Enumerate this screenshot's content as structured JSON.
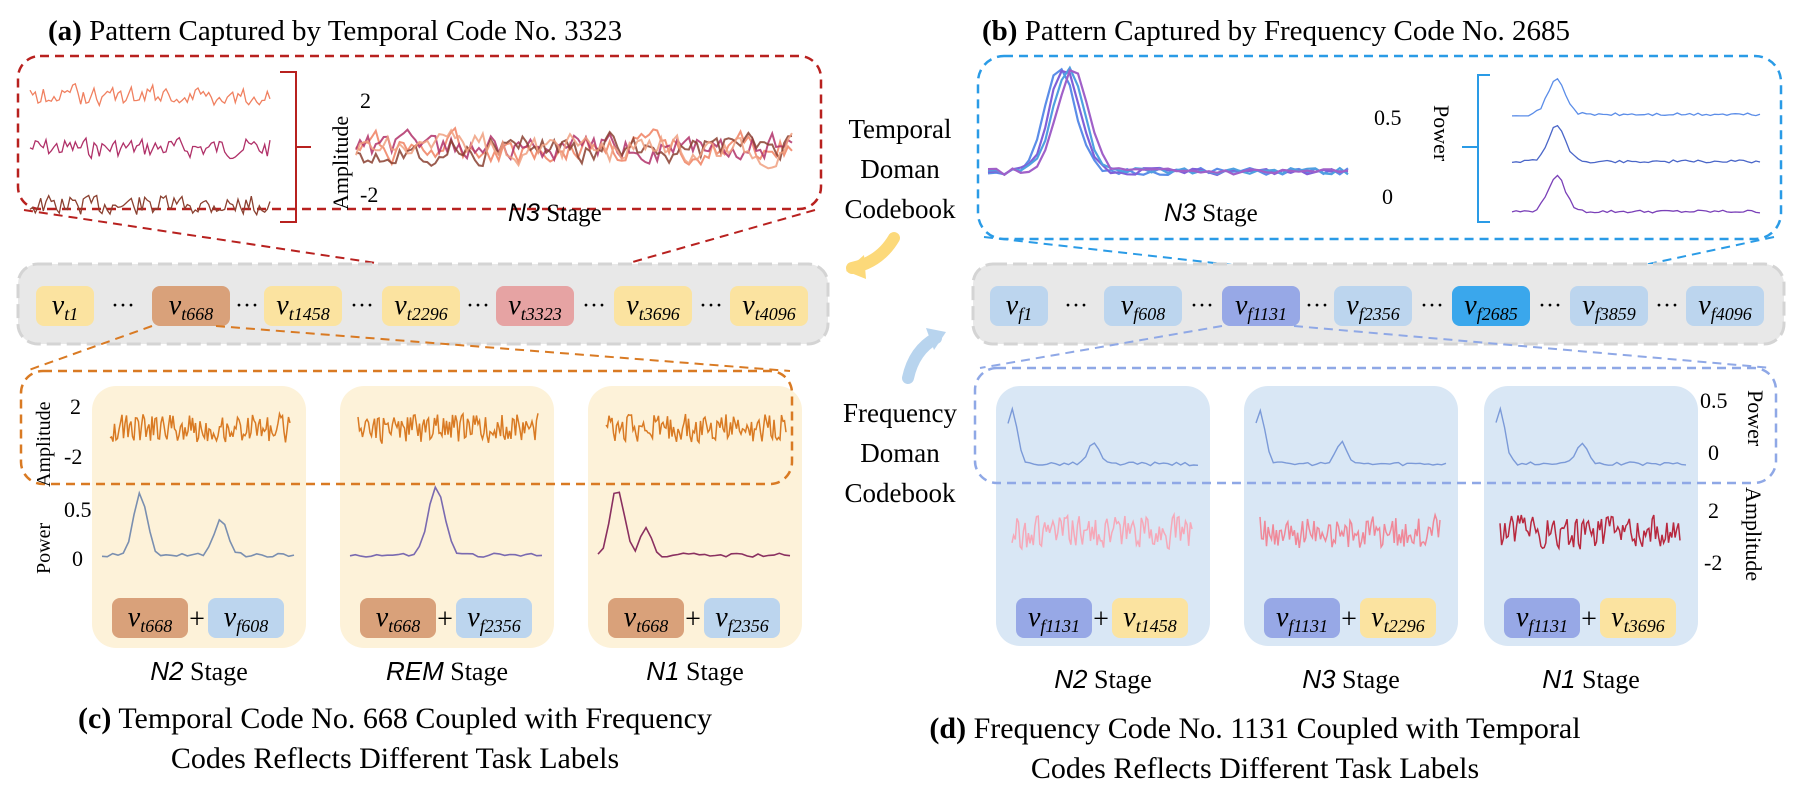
{
  "panels": {
    "a": {
      "letter": "(a)",
      "title": "Pattern Captured by Temporal Code No. 3323",
      "stage_name": "N3",
      "ylabel": "Amplitude",
      "ytick_top": "2",
      "ytick_bottom": "-2"
    },
    "b": {
      "letter": "(b)",
      "title": "Pattern Captured by Frequency Code No. 2685",
      "stage_name": "N3",
      "ylabel": "Power",
      "ytick_top": "0.5",
      "ytick_bottom": "0"
    },
    "c": {
      "letter": "(c)",
      "caption_line1": "Temporal Code No. 668 Coupled with Frequency",
      "caption_line2": "Codes Reflects Different Task Labels",
      "amp_label": "Amplitude",
      "amp_top": "2",
      "amp_bottom": "-2",
      "pow_label": "Power",
      "pow_top": "0.5",
      "pow_bottom": "0",
      "cards": [
        {
          "stage": "N2",
          "temporal": {
            "base": "v",
            "sub": "t668"
          },
          "frequency": {
            "base": "v",
            "sub": "f608"
          }
        },
        {
          "stage": "REM",
          "temporal": {
            "base": "v",
            "sub": "t668"
          },
          "frequency": {
            "base": "v",
            "sub": "f2356"
          }
        },
        {
          "stage": "N1",
          "temporal": {
            "base": "v",
            "sub": "t668"
          },
          "frequency": {
            "base": "v",
            "sub": "f2356"
          }
        }
      ]
    },
    "d": {
      "letter": "(d)",
      "caption_line1": "Frequency Code No. 1131 Coupled with Temporal",
      "caption_line2": "Codes Reflects Different Task Labels",
      "pow_label": "Power",
      "pow_top": "0.5",
      "pow_bottom": "0",
      "amp_label": "Amplitude",
      "amp_top": "2",
      "amp_bottom": "-2",
      "cards": [
        {
          "stage": "N2",
          "frequency": {
            "base": "v",
            "sub": "f1131"
          },
          "temporal": {
            "base": "v",
            "sub": "t1458"
          }
        },
        {
          "stage": "N3",
          "frequency": {
            "base": "v",
            "sub": "f1131"
          },
          "temporal": {
            "base": "v",
            "sub": "t2296"
          }
        },
        {
          "stage": "N1",
          "frequency": {
            "base": "v",
            "sub": "f1131"
          },
          "temporal": {
            "base": "v",
            "sub": "t3696"
          }
        }
      ]
    }
  },
  "stage_suffix": "Stage",
  "plus": "+",
  "dots": "···",
  "temporal_codebook": {
    "label_lines": [
      "Temporal",
      "Doman",
      "Codebook"
    ],
    "codes": [
      {
        "base": "v",
        "sub": "t1",
        "color": "#fbe3a0"
      },
      {
        "base": "v",
        "sub": "t668",
        "color": "#d9a17a"
      },
      {
        "base": "v",
        "sub": "t1458",
        "color": "#fbe3a0"
      },
      {
        "base": "v",
        "sub": "t2296",
        "color": "#fbe3a0"
      },
      {
        "base": "v",
        "sub": "t3323",
        "color": "#e6a3a3"
      },
      {
        "base": "v",
        "sub": "t3696",
        "color": "#fbe3a0"
      },
      {
        "base": "v",
        "sub": "t4096",
        "color": "#fbe3a0"
      }
    ]
  },
  "frequency_codebook": {
    "label_lines": [
      "Frequency",
      "Doman",
      "Codebook"
    ],
    "codes": [
      {
        "base": "v",
        "sub": "f1",
        "color": "#bcd5ee"
      },
      {
        "base": "v",
        "sub": "f608",
        "color": "#bcd5ee"
      },
      {
        "base": "v",
        "sub": "f1131",
        "color": "#97a8e6"
      },
      {
        "base": "v",
        "sub": "f2356",
        "color": "#bcd5ee"
      },
      {
        "base": "v",
        "sub": "f2685",
        "color": "#3aa7ec"
      },
      {
        "base": "v",
        "sub": "f3859",
        "color": "#bcd5ee"
      },
      {
        "base": "v",
        "sub": "f4096",
        "color": "#bcd5ee"
      }
    ]
  },
  "colors": {
    "temporal_accent": "#b8211f",
    "frequency_accent": "#2a9be6",
    "orange_accent": "#d97a23",
    "lightblue_accent": "#8fa8e6",
    "yellow_card": "#fdf2d9",
    "blue_card": "#d9e7f5",
    "temporal_chip": "#d9a17a",
    "frequency_chip_light": "#bcd5ee",
    "frequency_chip_1131": "#97a8e6",
    "temporal_chip_yellow": "#fbe3a0",
    "arrow_yellow": "#fcd97a",
    "arrow_blue": "#b8d4ee"
  }
}
